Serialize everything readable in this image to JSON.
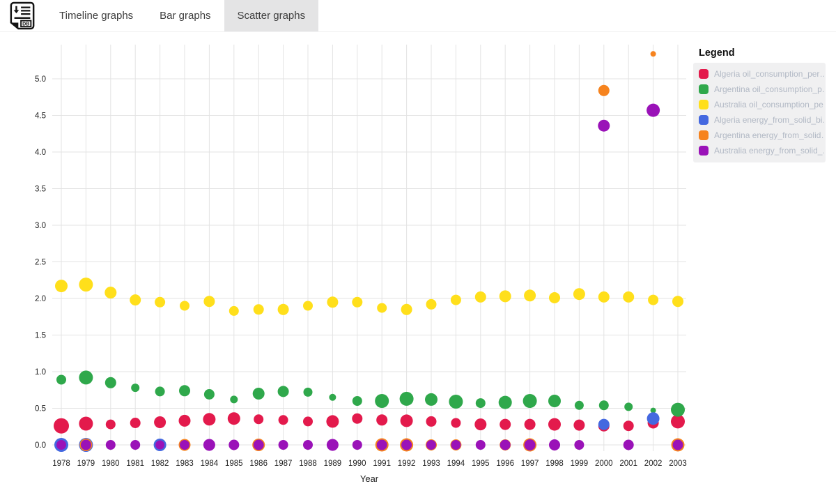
{
  "header": {
    "logo_text": "DB",
    "tabs": [
      {
        "label": "Timeline graphs",
        "active": false
      },
      {
        "label": "Bar graphs",
        "active": false
      },
      {
        "label": "Scatter graphs",
        "active": true
      }
    ]
  },
  "legend": {
    "title": "Legend",
    "items": [
      {
        "label": "Algeria oil_consumption_per…",
        "color": "#e31a4c"
      },
      {
        "label": "Argentina oil_consumption_p…",
        "color": "#2fa84b"
      },
      {
        "label": "Australia oil_consumption_pe…",
        "color": "#ffdf1b"
      },
      {
        "label": "Algeria energy_from_solid_bi…",
        "color": "#4468e0"
      },
      {
        "label": "Argentina energy_from_solid…",
        "color": "#f6831e"
      },
      {
        "label": "Australia energy_from_solid_…",
        "color": "#9a12b8"
      }
    ]
  },
  "chart_data": {
    "type": "scatter",
    "title": "",
    "xlabel": "Year",
    "ylabel": "",
    "grid": true,
    "legend_position": "right",
    "x_years": [
      1978,
      1979,
      1980,
      1981,
      1982,
      1983,
      1984,
      1985,
      1986,
      1987,
      1988,
      1989,
      1990,
      1991,
      1992,
      1993,
      1994,
      1995,
      1996,
      1997,
      1998,
      1999,
      2000,
      2001,
      2002,
      2003
    ],
    "yticks": [
      "0.0",
      "0.5",
      "1.0",
      "1.5",
      "2.0",
      "2.5",
      "3.0",
      "3.5",
      "4.0",
      "4.5",
      "5.0"
    ],
    "ylim": [
      0,
      5.5
    ],
    "point_format": "[year, value, bubble_radius_px]",
    "series": [
      {
        "name": "Algeria oil_consumption_per…",
        "color": "#e31a4c",
        "points": [
          [
            1978,
            0.26,
            11
          ],
          [
            1979,
            0.29,
            10
          ],
          [
            1980,
            0.28,
            7
          ],
          [
            1981,
            0.3,
            7.5
          ],
          [
            1982,
            0.31,
            8.5
          ],
          [
            1983,
            0.33,
            8.5
          ],
          [
            1984,
            0.35,
            9
          ],
          [
            1985,
            0.36,
            9
          ],
          [
            1986,
            0.35,
            7
          ],
          [
            1987,
            0.34,
            7
          ],
          [
            1988,
            0.32,
            7
          ],
          [
            1989,
            0.32,
            9
          ],
          [
            1990,
            0.36,
            7.5
          ],
          [
            1991,
            0.34,
            8
          ],
          [
            1992,
            0.33,
            9
          ],
          [
            1993,
            0.32,
            7.5
          ],
          [
            1994,
            0.3,
            7
          ],
          [
            1995,
            0.28,
            8.5
          ],
          [
            1996,
            0.28,
            8
          ],
          [
            1997,
            0.28,
            8
          ],
          [
            1998,
            0.28,
            9
          ],
          [
            1999,
            0.27,
            8
          ],
          [
            2000,
            0.26,
            8
          ],
          [
            2001,
            0.26,
            7.5
          ],
          [
            2002,
            0.3,
            8
          ],
          [
            2003,
            0.32,
            10
          ]
        ]
      },
      {
        "name": "Argentina oil_consumption_p…",
        "color": "#2fa84b",
        "points": [
          [
            1978,
            0.89,
            7
          ],
          [
            1979,
            0.92,
            10
          ],
          [
            1980,
            0.85,
            8
          ],
          [
            1981,
            0.78,
            6
          ],
          [
            1982,
            0.73,
            7
          ],
          [
            1983,
            0.74,
            8
          ],
          [
            1984,
            0.69,
            7.5
          ],
          [
            1985,
            0.62,
            5.5
          ],
          [
            1986,
            0.7,
            8.5
          ],
          [
            1987,
            0.73,
            8
          ],
          [
            1988,
            0.72,
            6.5
          ],
          [
            1989,
            0.65,
            5
          ],
          [
            1990,
            0.6,
            7
          ],
          [
            1991,
            0.6,
            10
          ],
          [
            1992,
            0.63,
            10
          ],
          [
            1993,
            0.62,
            9
          ],
          [
            1994,
            0.59,
            10
          ],
          [
            1995,
            0.57,
            7
          ],
          [
            1996,
            0.58,
            9.5
          ],
          [
            1997,
            0.6,
            10
          ],
          [
            1998,
            0.6,
            9
          ],
          [
            1999,
            0.54,
            6.5
          ],
          [
            2000,
            0.54,
            7
          ],
          [
            2001,
            0.52,
            6
          ],
          [
            2002,
            0.47,
            4
          ],
          [
            2003,
            0.48,
            10
          ]
        ]
      },
      {
        "name": "Australia oil_consumption_pe…",
        "color": "#ffdf1b",
        "points": [
          [
            1978,
            2.17,
            9
          ],
          [
            1979,
            2.19,
            10
          ],
          [
            1980,
            2.08,
            8.5
          ],
          [
            1981,
            1.98,
            8
          ],
          [
            1982,
            1.95,
            7.5
          ],
          [
            1983,
            1.9,
            7
          ],
          [
            1984,
            1.96,
            8
          ],
          [
            1985,
            1.83,
            7
          ],
          [
            1986,
            1.85,
            7.5
          ],
          [
            1987,
            1.85,
            8
          ],
          [
            1988,
            1.9,
            7
          ],
          [
            1989,
            1.95,
            8
          ],
          [
            1990,
            1.95,
            7.5
          ],
          [
            1991,
            1.87,
            7
          ],
          [
            1992,
            1.85,
            8
          ],
          [
            1993,
            1.92,
            7.5
          ],
          [
            1994,
            1.98,
            7.5
          ],
          [
            1995,
            2.02,
            8
          ],
          [
            1996,
            2.03,
            8.5
          ],
          [
            1997,
            2.04,
            8.5
          ],
          [
            1998,
            2.01,
            8
          ],
          [
            1999,
            2.06,
            8.5
          ],
          [
            2000,
            2.02,
            8
          ],
          [
            2001,
            2.02,
            8
          ],
          [
            2002,
            1.98,
            7.5
          ],
          [
            2003,
            1.96,
            8
          ]
        ]
      },
      {
        "name": "Algeria energy_from_solid_bi…",
        "color": "#4468e0",
        "points": [
          [
            1978,
            0,
            10
          ],
          [
            1979,
            0,
            10
          ],
          [
            1982,
            0,
            9
          ],
          [
            2000,
            0.28,
            8
          ],
          [
            2002,
            0.36,
            9
          ]
        ]
      },
      {
        "name": "Argentina energy_from_solid…",
        "color": "#f6831e",
        "points": [
          [
            1979,
            0,
            9
          ],
          [
            1983,
            0,
            8.5
          ],
          [
            1986,
            0,
            9
          ],
          [
            1991,
            0,
            9.5
          ],
          [
            1992,
            0,
            9.5
          ],
          [
            1993,
            0,
            8
          ],
          [
            1994,
            0,
            8
          ],
          [
            1996,
            0,
            8
          ],
          [
            1997,
            0,
            9.5
          ],
          [
            2000,
            4.84,
            8
          ],
          [
            2002,
            5.34,
            4
          ],
          [
            2003,
            0,
            9.5
          ]
        ]
      },
      {
        "name": "Australia energy_from_solid_…",
        "color": "#9a12b8",
        "points": [
          [
            1978,
            0,
            7
          ],
          [
            1979,
            0,
            7.5
          ],
          [
            1980,
            0,
            7
          ],
          [
            1981,
            0,
            7
          ],
          [
            1982,
            0,
            6.5
          ],
          [
            1983,
            0,
            7
          ],
          [
            1984,
            0,
            8.5
          ],
          [
            1985,
            0,
            7.5
          ],
          [
            1986,
            0,
            7.5
          ],
          [
            1987,
            0,
            7
          ],
          [
            1988,
            0,
            7
          ],
          [
            1989,
            0,
            8.5
          ],
          [
            1990,
            0,
            7
          ],
          [
            1991,
            0,
            7.5
          ],
          [
            1992,
            0,
            7.5
          ],
          [
            1993,
            0,
            7
          ],
          [
            1994,
            0,
            7
          ],
          [
            1995,
            0,
            7
          ],
          [
            1996,
            0,
            7.5
          ],
          [
            1997,
            0,
            8
          ],
          [
            1998,
            0,
            8
          ],
          [
            1999,
            0,
            7
          ],
          [
            2000,
            4.36,
            8.5
          ],
          [
            2001,
            0,
            7.5
          ],
          [
            2002,
            4.57,
            9.5
          ],
          [
            2003,
            0,
            7.5
          ]
        ]
      }
    ]
  },
  "style": {
    "grid_color": "#e3e3e3",
    "tick_text_color": "#222222",
    "active_tab_bg": "#e4e4e5"
  }
}
